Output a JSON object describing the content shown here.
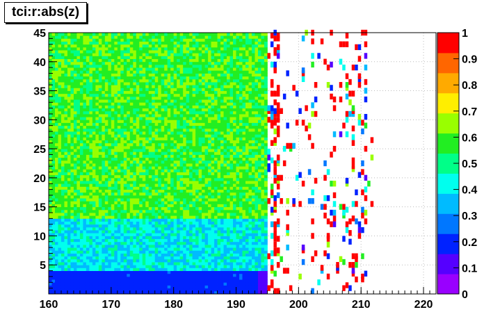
{
  "chart_data": {
    "type": "heatmap",
    "title": "tci:r:abs(z)",
    "xlabel": "",
    "ylabel": "",
    "xlim": [
      160,
      222
    ],
    "ylim": [
      0,
      45
    ],
    "x_ticks": [
      160,
      170,
      180,
      190,
      200,
      210,
      220
    ],
    "y_ticks": [
      5,
      10,
      15,
      20,
      25,
      30,
      35,
      40,
      45
    ],
    "z_range": [
      0,
      1
    ],
    "colorbar_ticks": [
      0,
      0.1,
      0.2,
      0.3,
      0.4,
      0.5,
      0.6,
      0.7,
      0.8,
      0.9,
      1
    ],
    "grid": true,
    "regions": [
      {
        "x_range": [
          160,
          195
        ],
        "y_range": [
          0,
          4
        ],
        "approx_value": 0.15
      },
      {
        "x_range": [
          160,
          195
        ],
        "y_range": [
          4,
          13
        ],
        "approx_value": 0.38
      },
      {
        "x_range": [
          160,
          195
        ],
        "y_range": [
          13,
          45
        ],
        "approx_value": 0.58
      },
      {
        "x_range": [
          195,
          212
        ],
        "y_range": [
          0,
          45
        ],
        "approx_value": "sparse, mostly 1.0 with scattered 0.2-0.6"
      }
    ],
    "palette": [
      "#9900ff",
      "#5500ff",
      "#0022ff",
      "#0077ff",
      "#00bbff",
      "#00ffee",
      "#00ff88",
      "#22ee22",
      "#99ff00",
      "#ffee00",
      "#ffaa00",
      "#ff6600",
      "#ff0000"
    ]
  }
}
